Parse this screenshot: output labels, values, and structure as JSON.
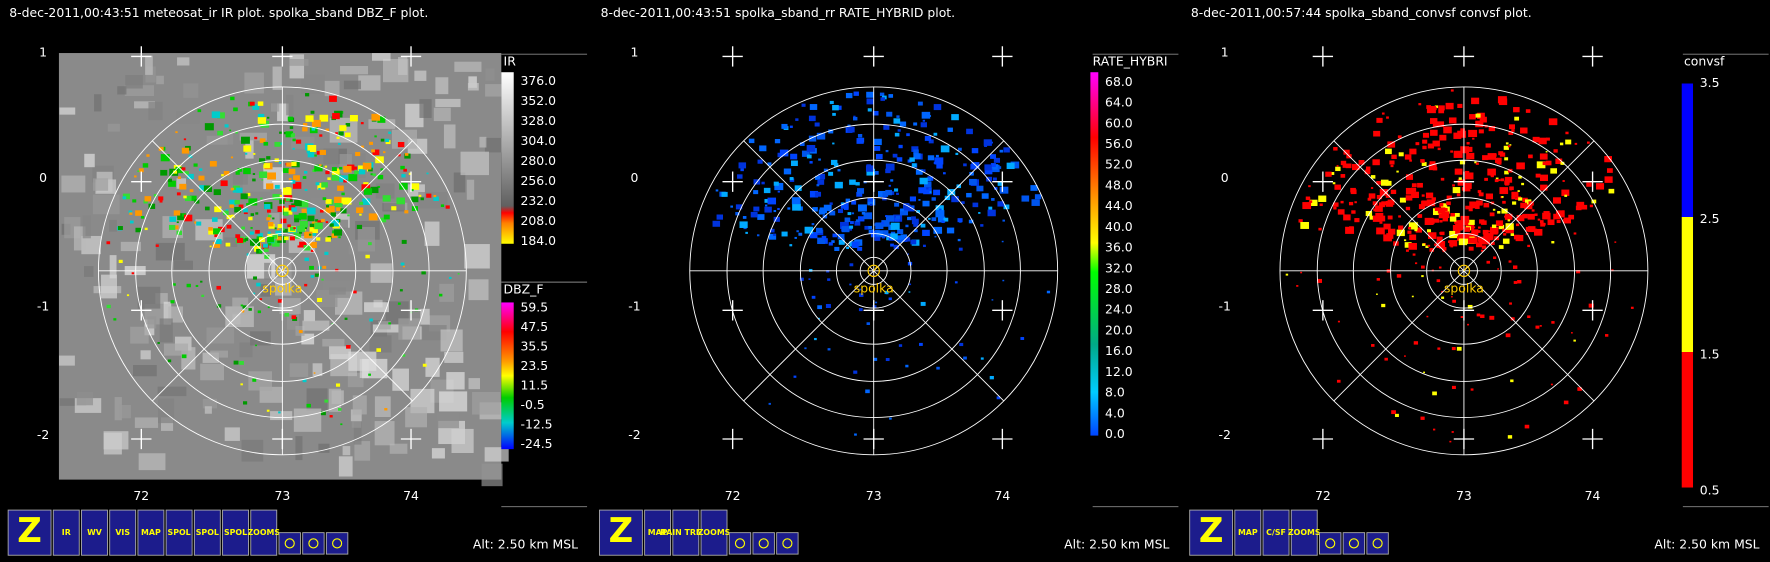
{
  "panels": [
    {
      "title": "8-dec-2011,00:43:51  meteosat_ir IR  plot.  spolka_sband DBZ_F  plot.",
      "y_labels": [
        "1",
        "0",
        "-1",
        "-2"
      ],
      "x_labels": [
        "72",
        "73",
        "74"
      ],
      "station": "spolka",
      "colorbars": [
        {
          "title": "IR",
          "labels": [
            "376.0",
            "352.0",
            "328.0",
            "304.0",
            "280.0",
            "256.0",
            "232.0",
            "208.0",
            "184.0"
          ]
        },
        {
          "title": "DBZ_F",
          "labels": [
            "59.5",
            "47.5",
            "35.5",
            "23.5",
            "11.5",
            "-0.5",
            "-12.5",
            "-24.5"
          ]
        }
      ],
      "toolbar": [
        "Z",
        "IR",
        "WV",
        "VIS",
        "MAP",
        "SPOL",
        "SPOL",
        "SPOL",
        "ZOOMS"
      ],
      "altitude": "Alt: 2.50 km MSL"
    },
    {
      "title": "8-dec-2011,00:43:51  spolka_sband_rr RATE_HYBRID  plot.",
      "y_labels": [
        "1",
        "0",
        "-1",
        "-2"
      ],
      "x_labels": [
        "72",
        "73",
        "74"
      ],
      "station": "spolka",
      "colorbars": [
        {
          "title": "RATE_HYBRI",
          "labels": [
            "68.0",
            "64.0",
            "60.0",
            "56.0",
            "52.0",
            "48.0",
            "44.0",
            "40.0",
            "36.0",
            "32.0",
            "28.0",
            "24.0",
            "20.0",
            "16.0",
            "12.0",
            "8.0",
            "4.0",
            "0.0"
          ]
        }
      ],
      "toolbar": [
        "Z",
        "MAP",
        "RAIN TRMM",
        "ZOOMS"
      ],
      "altitude": "Alt: 2.50 km MSL"
    },
    {
      "title": "8-dec-2011,00:57:44  spolka_sband_convsf convsf  plot.",
      "y_labels": [
        "1",
        "0",
        "-1",
        "-2"
      ],
      "x_labels": [
        "72",
        "73",
        "74"
      ],
      "station": "spolka",
      "colorbars": [
        {
          "title": "convsf",
          "labels": [
            "3.5",
            "2.5",
            "1.5",
            "0.5"
          ]
        }
      ],
      "toolbar": [
        "Z",
        "MAP",
        "C/SF",
        "ZOOMS"
      ],
      "altitude": "Alt: 2.50 km MSL"
    }
  ]
}
